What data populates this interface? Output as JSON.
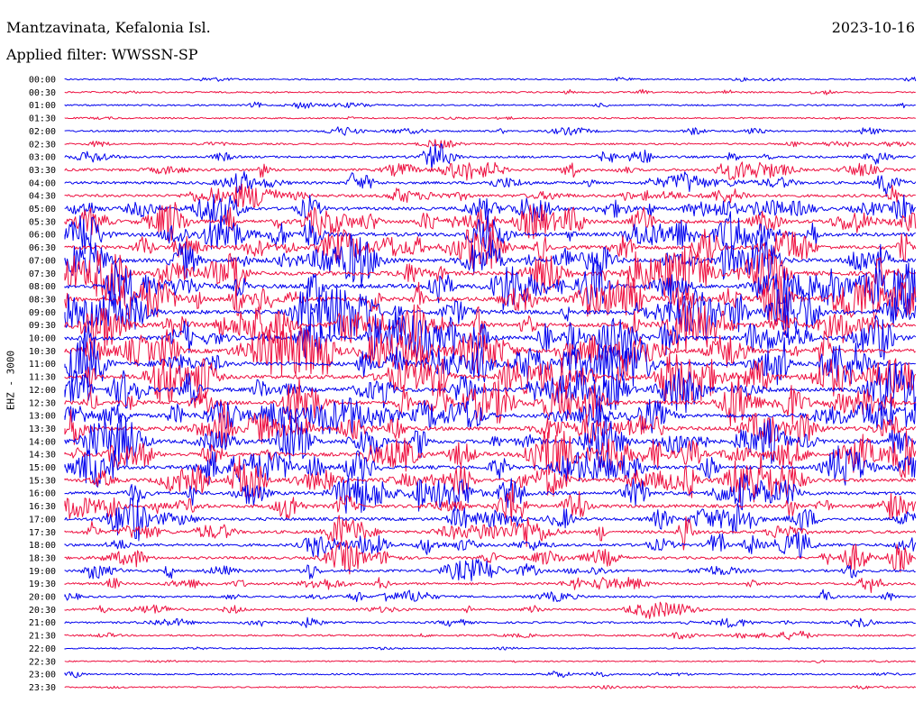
{
  "header": {
    "station": "Mantzavinata, Kefalonia Isl.",
    "date": "2023-10-16",
    "filter_label": "Applied filter: WWSSN-SP"
  },
  "chart_data": {
    "type": "line",
    "title": "Mantzavinata, Kefalonia Isl.",
    "subtitle": "Applied filter: WWSSN-SP",
    "ylabel": "EHZ - 3000",
    "xlabel": "",
    "grid": false,
    "rows": [
      "00:00",
      "00:30",
      "01:00",
      "01:30",
      "02:00",
      "02:30",
      "03:00",
      "03:30",
      "04:00",
      "04:30",
      "05:00",
      "05:30",
      "06:00",
      "06:30",
      "07:00",
      "07:30",
      "08:00",
      "08:30",
      "09:00",
      "09:30",
      "10:00",
      "10:30",
      "11:00",
      "11:30",
      "12:00",
      "12:30",
      "13:00",
      "13:30",
      "14:00",
      "14:30",
      "15:00",
      "15:30",
      "16:00",
      "16:30",
      "17:00",
      "17:30",
      "18:00",
      "18:30",
      "19:00",
      "19:30",
      "20:00",
      "20:30",
      "21:00",
      "21:30",
      "22:00",
      "22:30",
      "23:00",
      "23:30"
    ],
    "row_amplitude": [
      0.1,
      0.15,
      0.15,
      0.1,
      0.2,
      0.2,
      0.35,
      0.45,
      0.5,
      0.55,
      0.65,
      0.75,
      0.85,
      0.85,
      0.9,
      1.0,
      1.0,
      1.0,
      1.0,
      1.0,
      1.0,
      1.0,
      1.0,
      0.95,
      0.95,
      0.9,
      0.9,
      0.9,
      0.85,
      0.85,
      0.8,
      0.8,
      0.75,
      0.7,
      0.65,
      0.6,
      0.55,
      0.5,
      0.45,
      0.4,
      0.3,
      0.3,
      0.25,
      0.2,
      0.05,
      0.05,
      0.15,
      0.08
    ],
    "colors": [
      "#0000ee",
      "#ee1040"
    ]
  }
}
